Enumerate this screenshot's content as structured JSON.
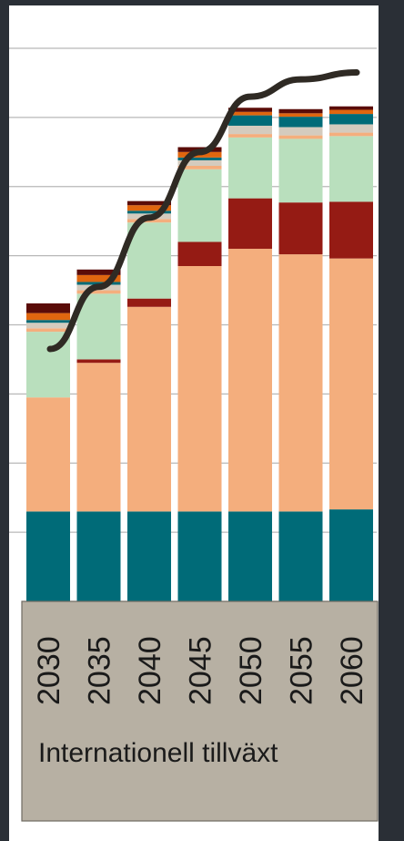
{
  "chart_data": {
    "type": "bar",
    "stacked": true,
    "categories": [
      "2030",
      "2035",
      "2040",
      "2045",
      "2050",
      "2055",
      "2060"
    ],
    "group_label": "Internationell tillväxt",
    "ylim": [
      0,
      8
    ],
    "gridlines": [
      1,
      2,
      3,
      4,
      5,
      6,
      7,
      8
    ],
    "grid": true,
    "series": [
      {
        "color": "#006b78",
        "values": [
          1.3,
          1.3,
          1.3,
          1.3,
          1.3,
          1.3,
          1.33
        ]
      },
      {
        "color": "#f4ae7d",
        "values": [
          1.65,
          2.15,
          2.96,
          3.55,
          3.8,
          3.72,
          3.63
        ]
      },
      {
        "color": "#951b14",
        "values": [
          0.0,
          0.05,
          0.12,
          0.35,
          0.73,
          0.75,
          0.82
        ]
      },
      {
        "color": "#b9dfbd",
        "values": [
          0.95,
          0.95,
          1.1,
          1.05,
          0.88,
          0.92,
          0.95
        ]
      },
      {
        "color": "#f4ae7d",
        "values": [
          0.05,
          0.05,
          0.05,
          0.05,
          0.05,
          0.05,
          0.05
        ]
      },
      {
        "color": "#d4cbbe",
        "values": [
          0.08,
          0.08,
          0.08,
          0.08,
          0.12,
          0.12,
          0.12
        ]
      },
      {
        "color": "#006b78",
        "values": [
          0.04,
          0.04,
          0.04,
          0.04,
          0.15,
          0.15,
          0.15
        ]
      },
      {
        "color": "#e0660f",
        "values": [
          0.1,
          0.1,
          0.08,
          0.08,
          0.05,
          0.05,
          0.06
        ]
      },
      {
        "color": "#5a0c08",
        "values": [
          0.14,
          0.08,
          0.06,
          0.07,
          0.06,
          0.06,
          0.05
        ]
      }
    ],
    "trend": {
      "color": "#2f2a24",
      "values": [
        3.65,
        4.55,
        5.55,
        6.5,
        7.3,
        7.55,
        7.65
      ]
    }
  }
}
